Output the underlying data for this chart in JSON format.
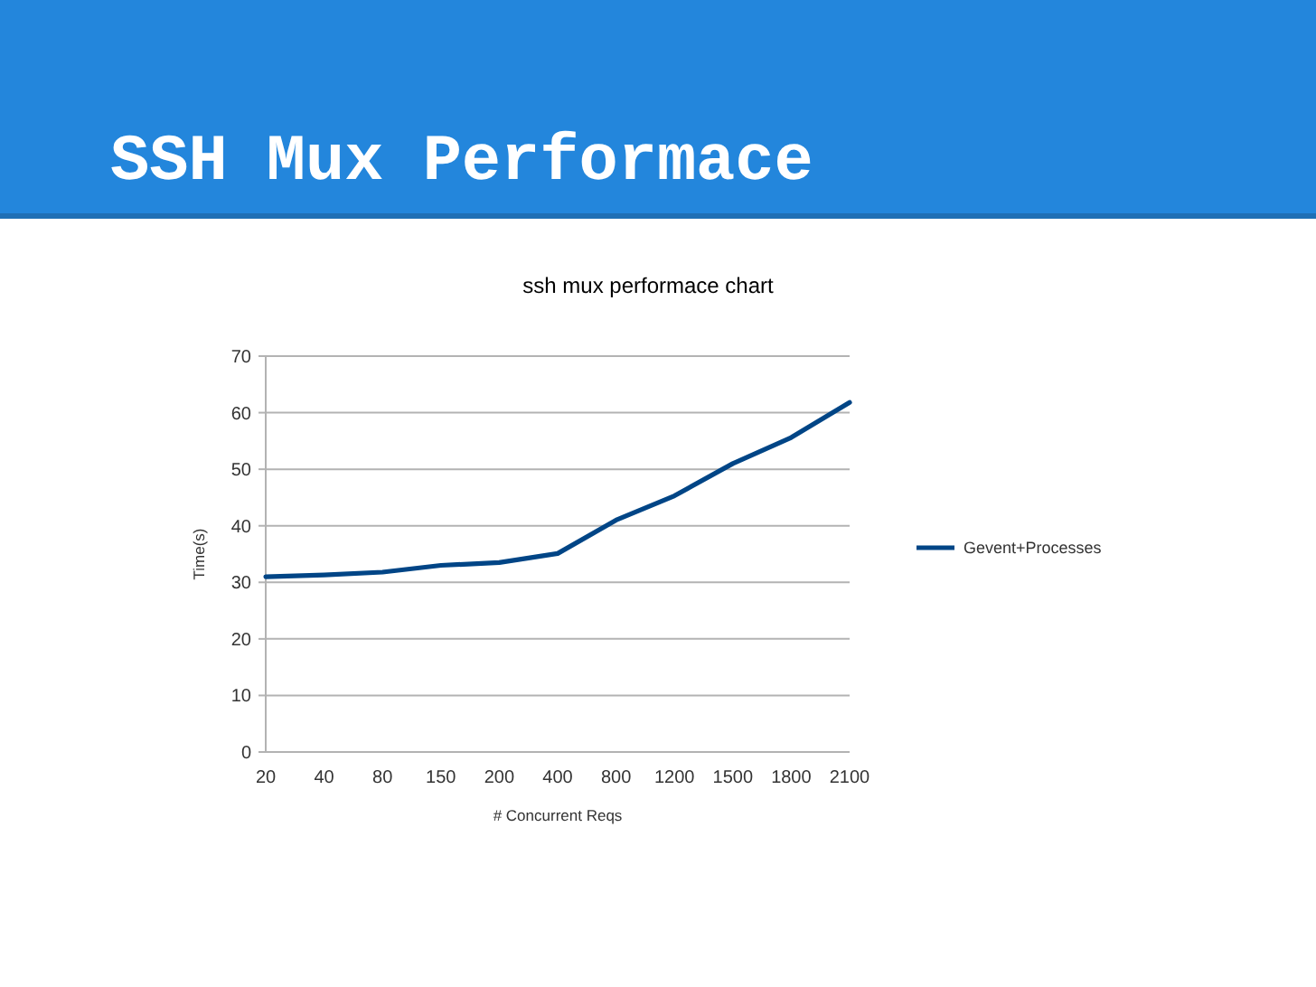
{
  "chart_data": {
    "type": "line",
    "title": "SSH Mux Performace",
    "subtitle": "ssh mux performace chart",
    "xlabel": "# Concurrent Reqs",
    "ylabel": "Time(s)",
    "categories": [
      "20",
      "40",
      "80",
      "150",
      "200",
      "400",
      "800",
      "1200",
      "1500",
      "1800",
      "2100"
    ],
    "series": [
      {
        "name": "Gevent+Processes",
        "color": "#004586",
        "values": [
          31,
          31.3,
          31.8,
          33,
          33.5,
          35.1,
          41,
          45.3,
          51,
          55.6,
          61.8
        ]
      }
    ],
    "ylim": [
      0,
      70
    ],
    "yticks": [
      0,
      10,
      20,
      30,
      40,
      50,
      60,
      70
    ],
    "grid": "y",
    "legend": "right",
    "marker": "none",
    "line_style": "solid"
  }
}
